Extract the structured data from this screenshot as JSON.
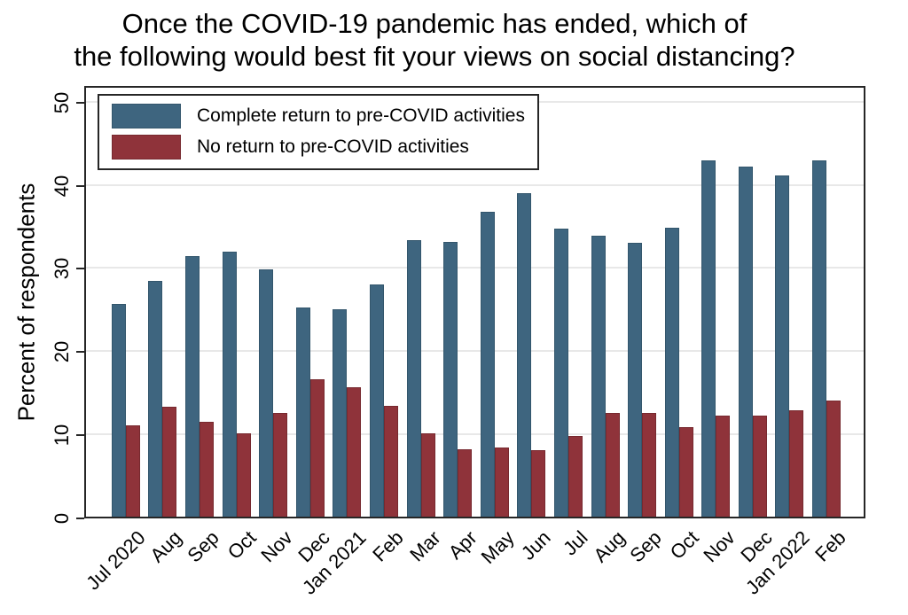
{
  "title": {
    "line1": "Once the COVID-19 pandemic has ended, which of",
    "line2": "the following would best fit your views on social distancing?"
  },
  "chart_data": {
    "type": "bar",
    "title": "Once the COVID-19 pandemic has ended, which of the following would best fit your views on social distancing?",
    "xlabel": "",
    "ylabel": "Percent of respondents",
    "ylim": [
      0,
      52
    ],
    "yticks": [
      0,
      10,
      20,
      30,
      40,
      50
    ],
    "grid": "horizontal",
    "legend_position": "top-left-inside",
    "categories": [
      "Jul 2020",
      "Aug",
      "Sep",
      "Oct",
      "Nov",
      "Dec",
      "Jan 2021",
      "Feb",
      "Mar",
      "Apr",
      "May",
      "Jun",
      "Jul",
      "Aug",
      "Sep",
      "Oct",
      "Nov",
      "Dec",
      "Jan 2022",
      "Feb"
    ],
    "series": [
      {
        "name": "Complete return to pre-COVID activities",
        "color": "#3e657f",
        "values": [
          25.8,
          28.6,
          31.5,
          32.1,
          29.9,
          25.4,
          25.2,
          28.1,
          33.5,
          33.2,
          36.9,
          39.1,
          34.8,
          34.0,
          33.1,
          34.9,
          43.1,
          42.3,
          41.2,
          43.0
        ]
      },
      {
        "name": "No return to pre-COVID activities",
        "color": "#8f333a",
        "values": [
          11.2,
          13.4,
          11.6,
          10.2,
          12.7,
          16.7,
          15.8,
          13.5,
          10.2,
          8.3,
          8.5,
          8.2,
          9.9,
          12.7,
          12.7,
          11.0,
          12.4,
          12.4,
          13.0,
          14.2
        ]
      }
    ]
  }
}
